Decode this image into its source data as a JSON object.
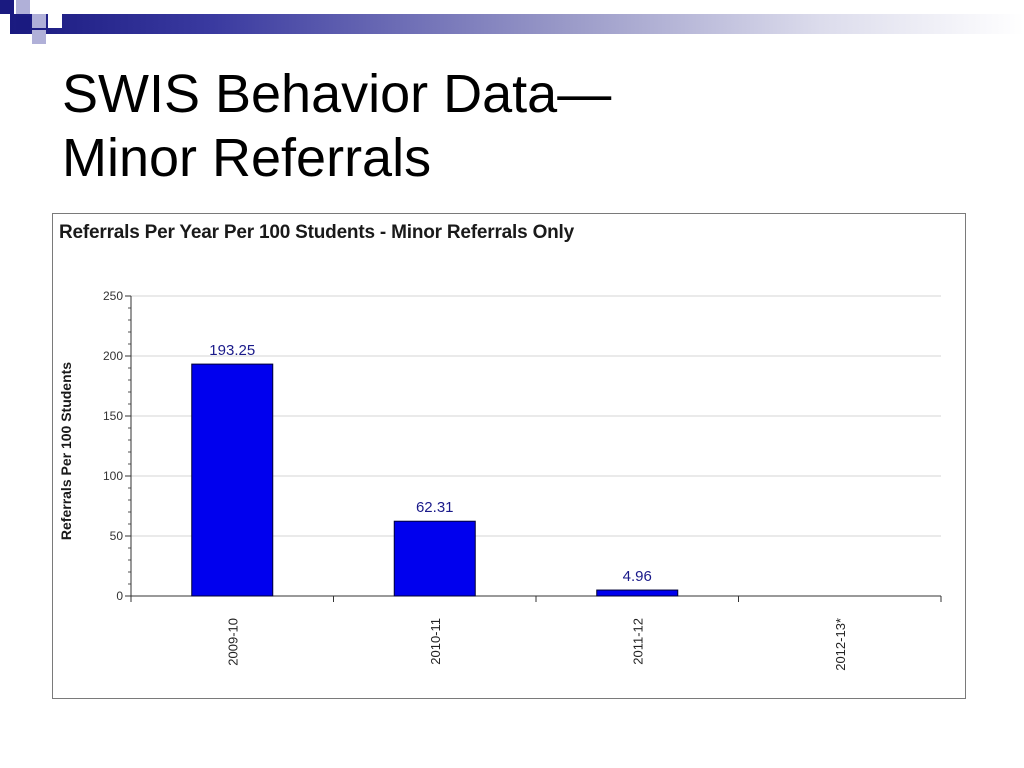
{
  "slide": {
    "title_line1": "SWIS Behavior Data—",
    "title_line2": "Minor Referrals"
  },
  "chart_data": {
    "type": "bar",
    "title": "Referrals Per Year Per 100 Students - Minor Referrals Only",
    "ylabel": "Referrals Per 100 Students",
    "xlabel": "",
    "categories": [
      "2009-10",
      "2010-11",
      "2011-12",
      "2012-13*"
    ],
    "values": [
      193.25,
      62.31,
      4.96,
      null
    ],
    "data_labels": [
      "193.25",
      "62.31",
      "4.96",
      ""
    ],
    "ylim": [
      0,
      250
    ],
    "yticks": [
      0,
      50,
      100,
      150,
      200,
      250
    ],
    "grid": true,
    "bar_color": "#0000ee",
    "label_color": "#1a1a8a",
    "legend": "none"
  }
}
